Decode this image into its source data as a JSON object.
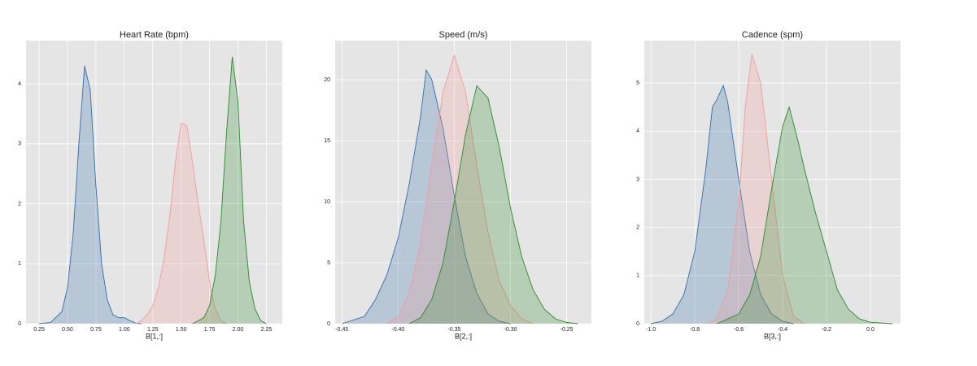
{
  "chart_data": [
    {
      "type": "area",
      "title": "Heart Rate (bpm)",
      "xlabel": "B[1,:]",
      "grid": true,
      "xlim": [
        0.135,
        2.39
      ],
      "ylim": [
        0,
        4.72
      ],
      "xticks": [
        0.25,
        {
          "value": 0.5,
          "label": "0.50"
        },
        0.75,
        {
          "value": 1.0,
          "label": "1.00"
        },
        1.25,
        {
          "value": 1.5,
          "label": "1.50"
        },
        1.75,
        {
          "value": 2.0,
          "label": "2.00"
        },
        2.25
      ],
      "yticks": [
        0,
        1,
        2,
        3,
        4
      ],
      "series": [
        {
          "color": "#2f6ead",
          "x": [
            0.25,
            0.35,
            0.45,
            0.5,
            0.55,
            0.6,
            0.65,
            0.7,
            0.75,
            0.8,
            0.85,
            0.9,
            0.95,
            1.0,
            1.05,
            1.1,
            1.15
          ],
          "values": [
            0,
            0.02,
            0.2,
            0.6,
            1.5,
            3.0,
            4.3,
            3.9,
            2.3,
            1.0,
            0.4,
            0.15,
            0.1,
            0.1,
            0.05,
            0.01,
            0
          ]
        },
        {
          "color": "#f59a9a",
          "x": [
            1.1,
            1.15,
            1.2,
            1.25,
            1.3,
            1.35,
            1.4,
            1.45,
            1.5,
            1.55,
            1.6,
            1.65,
            1.7,
            1.75,
            1.8,
            1.85,
            1.9
          ],
          "values": [
            0,
            0.05,
            0.15,
            0.3,
            0.6,
            1.1,
            1.8,
            2.7,
            3.35,
            3.3,
            2.7,
            2.0,
            1.4,
            0.7,
            0.25,
            0.05,
            0
          ]
        },
        {
          "color": "#2a8a2a",
          "x": [
            1.6,
            1.7,
            1.75,
            1.8,
            1.85,
            1.9,
            1.95,
            2.0,
            2.05,
            2.1,
            2.15,
            2.2,
            2.25
          ],
          "values": [
            0,
            0.1,
            0.3,
            0.8,
            1.7,
            3.2,
            4.45,
            3.7,
            1.7,
            0.7,
            0.25,
            0.05,
            0
          ]
        }
      ]
    },
    {
      "type": "area",
      "title": "Speed (m/s)",
      "xlabel": "B[2,:]",
      "grid": true,
      "xlim": [
        -0.456,
        -0.228
      ],
      "ylim": [
        0,
        23.2
      ],
      "xticks": [
        -0.45,
        {
          "value": -0.4,
          "label": "-0.40"
        },
        -0.35,
        {
          "value": -0.3,
          "label": "-0.30"
        },
        -0.25
      ],
      "yticks": [
        0,
        5,
        10,
        15,
        20
      ],
      "series": [
        {
          "color": "#2f6ead",
          "x": [
            -0.45,
            -0.43,
            -0.42,
            -0.41,
            -0.4,
            -0.39,
            -0.38,
            -0.375,
            -0.37,
            -0.36,
            -0.35,
            -0.34,
            -0.33,
            -0.32,
            -0.31,
            -0.3
          ],
          "values": [
            0,
            0.6,
            2,
            4,
            7,
            11.5,
            17,
            20.8,
            20,
            16,
            10.5,
            5.5,
            2.5,
            0.8,
            0.2,
            0
          ]
        },
        {
          "color": "#f59a9a",
          "x": [
            -0.41,
            -0.4,
            -0.39,
            -0.38,
            -0.37,
            -0.36,
            -0.35,
            -0.34,
            -0.33,
            -0.32,
            -0.31,
            -0.3,
            -0.29,
            -0.28
          ],
          "values": [
            0,
            0.6,
            2.5,
            6.5,
            13,
            19,
            22,
            19,
            13,
            7.5,
            3.5,
            1.5,
            0.4,
            0
          ]
        },
        {
          "color": "#2a8a2a",
          "x": [
            -0.39,
            -0.38,
            -0.37,
            -0.36,
            -0.35,
            -0.34,
            -0.33,
            -0.32,
            -0.31,
            -0.3,
            -0.29,
            -0.28,
            -0.27,
            -0.26,
            -0.25,
            -0.24
          ],
          "values": [
            0,
            0.5,
            2,
            5,
            10,
            15.5,
            19.5,
            18.5,
            14.5,
            9.5,
            5.5,
            2.8,
            1.2,
            0.4,
            0.1,
            0
          ]
        }
      ]
    },
    {
      "type": "area",
      "title": "Cadence (spm)",
      "xlabel": "B[3,:]",
      "grid": true,
      "xlim": [
        -1.03,
        0.137
      ],
      "ylim": [
        0,
        5.88
      ],
      "xticks": [
        {
          "value": -1.0,
          "label": "-1.0"
        },
        -0.8,
        -0.6,
        -0.4,
        -0.2,
        {
          "value": 0.0,
          "label": "0.0"
        }
      ],
      "yticks": [
        0,
        1,
        2,
        3,
        4,
        5
      ],
      "series": [
        {
          "color": "#2f6ead",
          "x": [
            -1.0,
            -0.95,
            -0.9,
            -0.85,
            -0.8,
            -0.75,
            -0.72,
            -0.7,
            -0.67,
            -0.65,
            -0.6,
            -0.55,
            -0.5,
            -0.45,
            -0.4,
            -0.35
          ],
          "values": [
            0,
            0.05,
            0.2,
            0.6,
            1.5,
            3.2,
            4.5,
            4.65,
            4.95,
            4.6,
            3.0,
            1.5,
            0.6,
            0.2,
            0.05,
            0
          ]
        },
        {
          "color": "#f59a9a",
          "x": [
            -0.75,
            -0.7,
            -0.65,
            -0.6,
            -0.57,
            -0.54,
            -0.5,
            -0.45,
            -0.4,
            -0.35,
            -0.3
          ],
          "values": [
            0,
            0.1,
            0.7,
            2.5,
            4.5,
            5.6,
            5.0,
            3.0,
            1.0,
            0.15,
            0
          ]
        },
        {
          "color": "#2a8a2a",
          "x": [
            -0.7,
            -0.6,
            -0.55,
            -0.5,
            -0.45,
            -0.4,
            -0.37,
            -0.33,
            -0.3,
            -0.25,
            -0.2,
            -0.15,
            -0.1,
            -0.05,
            0.0,
            0.1
          ],
          "values": [
            0,
            0.2,
            0.6,
            1.4,
            2.8,
            4.1,
            4.5,
            3.8,
            3.2,
            2.3,
            1.5,
            0.7,
            0.3,
            0.1,
            0.03,
            0
          ]
        }
      ]
    }
  ]
}
